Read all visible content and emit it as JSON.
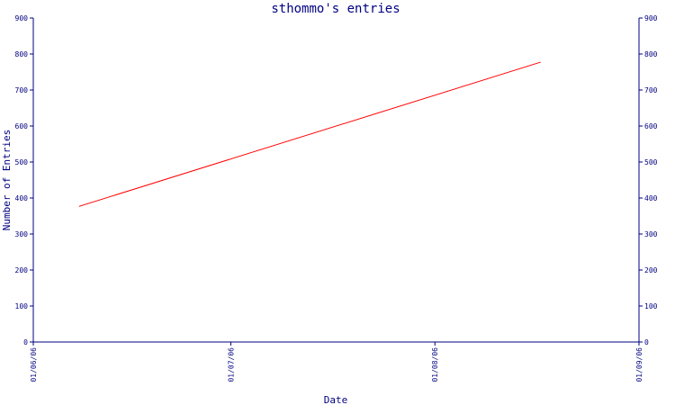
{
  "chart_data": {
    "type": "line",
    "title": "sthommo's entries",
    "xlabel": "Date",
    "ylabel": "Number of Entries",
    "x_ticks": [
      "01/06/06",
      "01/07/06",
      "01/08/06",
      "01/09/06"
    ],
    "x_range": [
      "2006-06-01",
      "2006-09-01"
    ],
    "y_ticks": [
      "0",
      "100",
      "200",
      "300",
      "400",
      "500",
      "600",
      "700",
      "800",
      "900"
    ],
    "ylim": [
      0,
      900
    ],
    "series": [
      {
        "x": [
          "2006-06-08",
          "2006-08-17"
        ],
        "values": [
          377,
          777
        ]
      }
    ],
    "grid": false,
    "legend": "none",
    "colors": {
      "line": "#ff0000",
      "axes": "#000080",
      "text": "#000080",
      "background": "#ffffff"
    }
  }
}
